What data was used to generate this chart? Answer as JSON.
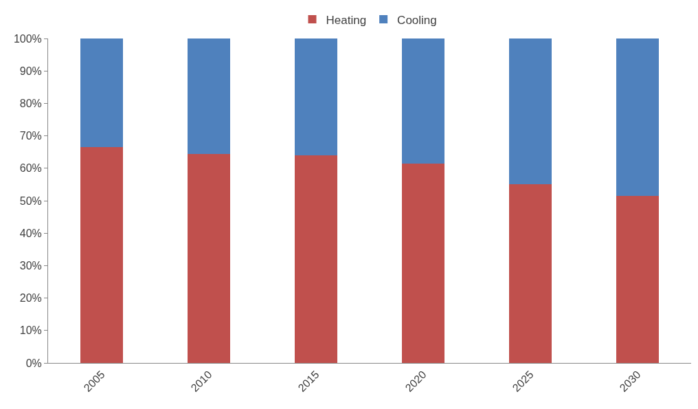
{
  "chart_data": {
    "type": "bar",
    "stacked": true,
    "categories": [
      "2005",
      "2010",
      "2015",
      "2020",
      "2025",
      "2030"
    ],
    "series": [
      {
        "name": "Heating",
        "color": "#c0504d",
        "values": [
          66.5,
          64.5,
          64,
          61.5,
          55,
          51.5
        ]
      },
      {
        "name": "Cooling",
        "color": "#4f81bd",
        "values": [
          33.5,
          35.5,
          36,
          38.5,
          45,
          48.5
        ]
      }
    ],
    "ylim": [
      0,
      100
    ],
    "yticks": [
      {
        "value": 0,
        "label": "0%"
      },
      {
        "value": 10,
        "label": "10%"
      },
      {
        "value": 20,
        "label": "20%"
      },
      {
        "value": 30,
        "label": "30%"
      },
      {
        "value": 40,
        "label": "40%"
      },
      {
        "value": 50,
        "label": "50%"
      },
      {
        "value": 60,
        "label": "60%"
      },
      {
        "value": 70,
        "label": "70%"
      },
      {
        "value": 80,
        "label": "80%"
      },
      {
        "value": 90,
        "label": "90%"
      },
      {
        "value": 100,
        "label": "100%"
      }
    ],
    "grid": false,
    "legend": "top"
  }
}
